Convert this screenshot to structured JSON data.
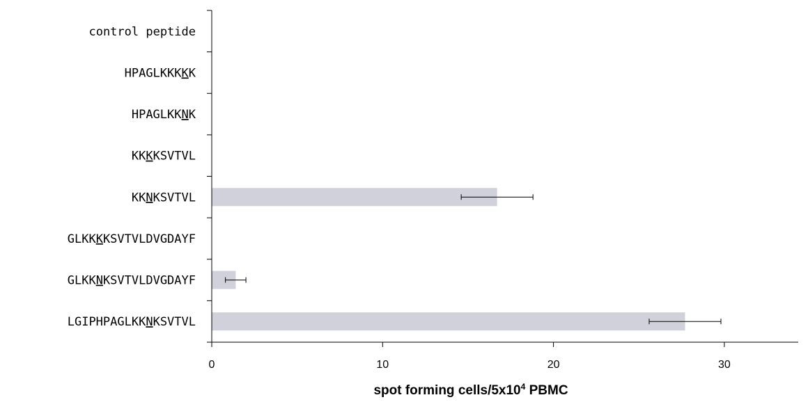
{
  "chart_data": {
    "type": "bar",
    "orientation": "horizontal",
    "categories": [
      {
        "pre": "",
        "mark": "",
        "post": "control peptide"
      },
      {
        "pre": "HPAGLKKK",
        "mark": "K",
        "post": "K"
      },
      {
        "pre": "HPAGLKK",
        "mark": "N",
        "post": "K"
      },
      {
        "pre": "KK",
        "mark": "K",
        "post": "KSVTVL"
      },
      {
        "pre": "KK",
        "mark": "N",
        "post": "KSVTVL"
      },
      {
        "pre": "GLKK",
        "mark": "K",
        "post": "KSVTVLDVGDAYF"
      },
      {
        "pre": "GLKK",
        "mark": "N",
        "post": "KSVTVLDVGDAYF"
      },
      {
        "pre": "LGIPHPAGLKK",
        "mark": "N",
        "post": "KSVTVL"
      }
    ],
    "values": [
      0,
      0,
      0,
      0,
      16.7,
      0,
      1.4,
      27.7
    ],
    "errors": [
      0,
      0,
      0,
      0,
      2.1,
      0,
      0.6,
      2.1
    ],
    "xlabel_main": "spot forming cells/5x10",
    "xlabel_sup": "4",
    "xlabel_tail": " PBMC",
    "xticks": [
      0,
      10,
      20,
      30
    ],
    "xlim": [
      0,
      34
    ],
    "grid": false,
    "bar_color": "#d0d1da",
    "error_color": "#000000"
  }
}
